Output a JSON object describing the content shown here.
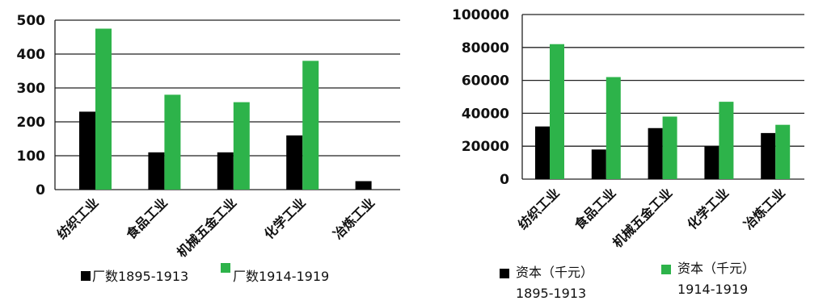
{
  "chart_data": [
    {
      "type": "bar",
      "categories": [
        "纺织工业",
        "食品工业",
        "机械五金工业",
        "化学工业",
        "冶炼工业"
      ],
      "series": [
        {
          "name": "厂数1895-1913",
          "values": [
            230,
            110,
            110,
            160,
            25
          ],
          "color": "#000000"
        },
        {
          "name": "厂数1914-1919",
          "values": [
            475,
            280,
            258,
            380,
            0
          ],
          "color": "#2db34a"
        }
      ],
      "ylim": [
        0,
        500
      ],
      "yticks": [
        "0",
        "100",
        "200",
        "300",
        "400",
        "500"
      ],
      "grid": true,
      "legend": "bottom"
    },
    {
      "type": "bar",
      "categories": [
        "纺织工业",
        "食品工业",
        "机械五金工业",
        "化学工业",
        "冶炼工业"
      ],
      "series": [
        {
          "name": "资本（千元）1895-1913",
          "name_line1": "资本（千元）",
          "name_line2": "1895-1913",
          "values": [
            32000,
            18000,
            31000,
            20000,
            28000
          ],
          "color": "#000000"
        },
        {
          "name": "资本（千元）1914-1919",
          "name_line1": "资本（千元）",
          "name_line2": "1914-1919",
          "values": [
            82000,
            62000,
            38000,
            47000,
            33000
          ],
          "color": "#2db34a"
        }
      ],
      "ylim": [
        0,
        100000
      ],
      "yticks": [
        "0",
        "20000",
        "40000",
        "60000",
        "80000",
        "100000"
      ],
      "grid": true,
      "legend": "bottom"
    }
  ]
}
